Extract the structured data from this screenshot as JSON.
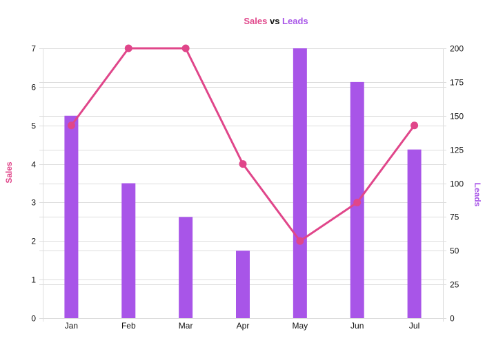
{
  "chart_data": {
    "type": "bar",
    "title_parts": [
      "Sales",
      " vs ",
      "Leads"
    ],
    "categories": [
      "Jan",
      "Feb",
      "Mar",
      "Apr",
      "May",
      "Jun",
      "Jul"
    ],
    "series": [
      {
        "name": "Leads",
        "type": "bar",
        "axis": "right",
        "values": [
          150,
          100,
          75,
          50,
          200,
          175,
          125
        ],
        "color": "#a855e8"
      },
      {
        "name": "Sales",
        "type": "line",
        "axis": "left",
        "values": [
          5,
          7,
          7,
          4,
          2,
          3,
          5
        ],
        "color": "#e0468a"
      }
    ],
    "y_left": {
      "label": "Sales",
      "ylim": [
        0,
        7
      ],
      "ticks": [
        0,
        1,
        2,
        3,
        4,
        5,
        6,
        7
      ],
      "color": "#e0468a"
    },
    "y_right": {
      "label": "Leads",
      "ylim": [
        0,
        200
      ],
      "ticks": [
        0,
        25,
        50,
        75,
        100,
        125,
        150,
        175,
        200
      ],
      "color": "#a855e8"
    },
    "title_colors": [
      "#e0468a",
      "#111111",
      "#a855e8"
    ],
    "grid": true,
    "grid_color": "#dddddd"
  }
}
